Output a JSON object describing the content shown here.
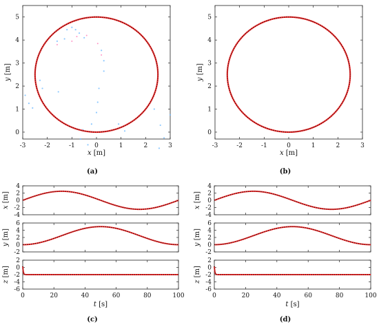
{
  "colors": {
    "reference": "#ff2b2b",
    "actual": "#111111",
    "scatter": "#6ab7ff",
    "pink": "#ff7ab8"
  },
  "chart_data": [
    {
      "type": "line",
      "caption": "(a)",
      "xlabel_var": "x",
      "xlabel_unit": " [m]",
      "ylabel_var": "y",
      "ylabel_unit": " [m]",
      "xlim": [
        -3,
        3
      ],
      "ylim": [
        -0.3,
        5.5
      ],
      "xticks": [
        -3,
        -2,
        -1,
        0,
        1,
        2,
        3
      ],
      "yticks": [
        0,
        1,
        2,
        3,
        4,
        5
      ],
      "series": [
        {
          "kind": "circle",
          "cx": 0,
          "cy": 2.5,
          "r": 2.5,
          "role": "reference"
        },
        {
          "kind": "circle",
          "cx": 0,
          "cy": 2.5,
          "r": 2.5,
          "role": "actual"
        }
      ],
      "scatter": [
        {
          "x": -2.9,
          "y": 1.6
        },
        {
          "x": -2.75,
          "y": 1.25
        },
        {
          "x": -2.6,
          "y": 1.05
        },
        {
          "x": -2.3,
          "y": 2.25
        },
        {
          "x": -2.2,
          "y": 1.9
        },
        {
          "x": -1.55,
          "y": 1.75
        },
        {
          "x": -1.2,
          "y": 4.45
        },
        {
          "x": -1.0,
          "y": 4.55
        },
        {
          "x": -0.85,
          "y": 4.45
        },
        {
          "x": -0.7,
          "y": 4.3
        },
        {
          "x": -1.6,
          "y": 3.95
        },
        {
          "x": -1.3,
          "y": 4.05
        },
        {
          "x": -0.5,
          "y": 4.1
        },
        {
          "x": 0.2,
          "y": 3.55
        },
        {
          "x": 0.3,
          "y": 3.1
        },
        {
          "x": 0.3,
          "y": 2.65
        },
        {
          "x": 0.1,
          "y": 1.9
        },
        {
          "x": 0.05,
          "y": 1.3
        },
        {
          "x": 0.0,
          "y": 0.85
        },
        {
          "x": -0.2,
          "y": 0.35
        },
        {
          "x": -0.55,
          "y": 0.1
        },
        {
          "x": -0.65,
          "y": -0.3
        },
        {
          "x": -0.35,
          "y": -0.55
        },
        {
          "x": 0.9,
          "y": 0.35
        },
        {
          "x": 1.15,
          "y": 0.05
        },
        {
          "x": 2.35,
          "y": 1.0
        },
        {
          "x": 2.6,
          "y": 0.3
        },
        {
          "x": 2.75,
          "y": -0.25
        },
        {
          "x": 2.55,
          "y": -0.7
        },
        {
          "x": 3.0,
          "y": 0.75
        }
      ],
      "pink": [
        {
          "x": -0.8,
          "y": 4.15
        },
        {
          "x": -0.4,
          "y": 4.2
        },
        {
          "x": 0.05,
          "y": 3.85
        },
        {
          "x": 0.2,
          "y": 3.35
        },
        {
          "x": -1.6,
          "y": 3.8
        },
        {
          "x": -1.0,
          "y": 3.95
        }
      ]
    },
    {
      "type": "line",
      "caption": "(b)",
      "xlabel_var": "x",
      "xlabel_unit": " [m]",
      "ylabel_var": "y",
      "ylabel_unit": " [m]",
      "xlim": [
        -3,
        3
      ],
      "ylim": [
        -0.3,
        5.5
      ],
      "xticks": [
        -3,
        -2,
        -1,
        0,
        1,
        2,
        3
      ],
      "yticks": [
        0,
        1,
        2,
        3,
        4,
        5
      ],
      "series": [
        {
          "kind": "circle",
          "cx": 0,
          "cy": 2.5,
          "r": 2.5,
          "role": "reference"
        },
        {
          "kind": "circle",
          "cx": 0,
          "cy": 2.5,
          "r": 2.5,
          "role": "actual"
        }
      ]
    },
    {
      "type": "line",
      "caption": "(c)",
      "xlabel_var": "t",
      "xlabel_unit": " [s]",
      "xlim": [
        0,
        100
      ],
      "xticks": [
        0,
        20,
        40,
        60,
        80,
        100
      ],
      "subplots": [
        {
          "ylabel_var": "x",
          "ylabel_unit": " [m]",
          "ylim": [
            -4,
            4
          ],
          "yticks": [
            4,
            2,
            0,
            -2,
            -4
          ],
          "func": "x"
        },
        {
          "ylabel_var": "y",
          "ylabel_unit": " [m]",
          "ylim": [
            -2,
            6
          ],
          "yticks": [
            6,
            4,
            2,
            0,
            -2
          ],
          "func": "y"
        },
        {
          "ylabel_var": "z",
          "ylabel_unit": " [m]",
          "ylim": [
            -6,
            2
          ],
          "yticks": [
            2,
            0,
            -2,
            -4,
            -6
          ],
          "func": "z"
        }
      ],
      "signals": {
        "x_amplitude": 2.5,
        "y_center": 2.5,
        "y_amplitude": 2.5,
        "period": 100,
        "z_level": -2,
        "z_start": 0.3
      }
    },
    {
      "type": "line",
      "caption": "(d)",
      "xlabel_var": "t",
      "xlabel_unit": " [s]",
      "xlim": [
        0,
        100
      ],
      "xticks": [
        0,
        20,
        40,
        60,
        80,
        100
      ],
      "subplots": [
        {
          "ylabel_var": "x",
          "ylabel_unit": " [m]",
          "ylim": [
            -4,
            4
          ],
          "yticks": [
            4,
            2,
            0,
            -2,
            -4
          ],
          "func": "x"
        },
        {
          "ylabel_var": "y",
          "ylabel_unit": " [m]",
          "ylim": [
            -2,
            6
          ],
          "yticks": [
            6,
            4,
            2,
            0,
            -2
          ],
          "func": "y"
        },
        {
          "ylabel_var": "z",
          "ylabel_unit": " [m]",
          "ylim": [
            -6,
            2
          ],
          "yticks": [
            2,
            0,
            -2,
            -4,
            -6
          ],
          "func": "z"
        }
      ],
      "signals": {
        "x_amplitude": 2.5,
        "y_center": 2.5,
        "y_amplitude": 2.5,
        "period": 100,
        "z_level": -2,
        "z_start": 0.3
      }
    }
  ]
}
